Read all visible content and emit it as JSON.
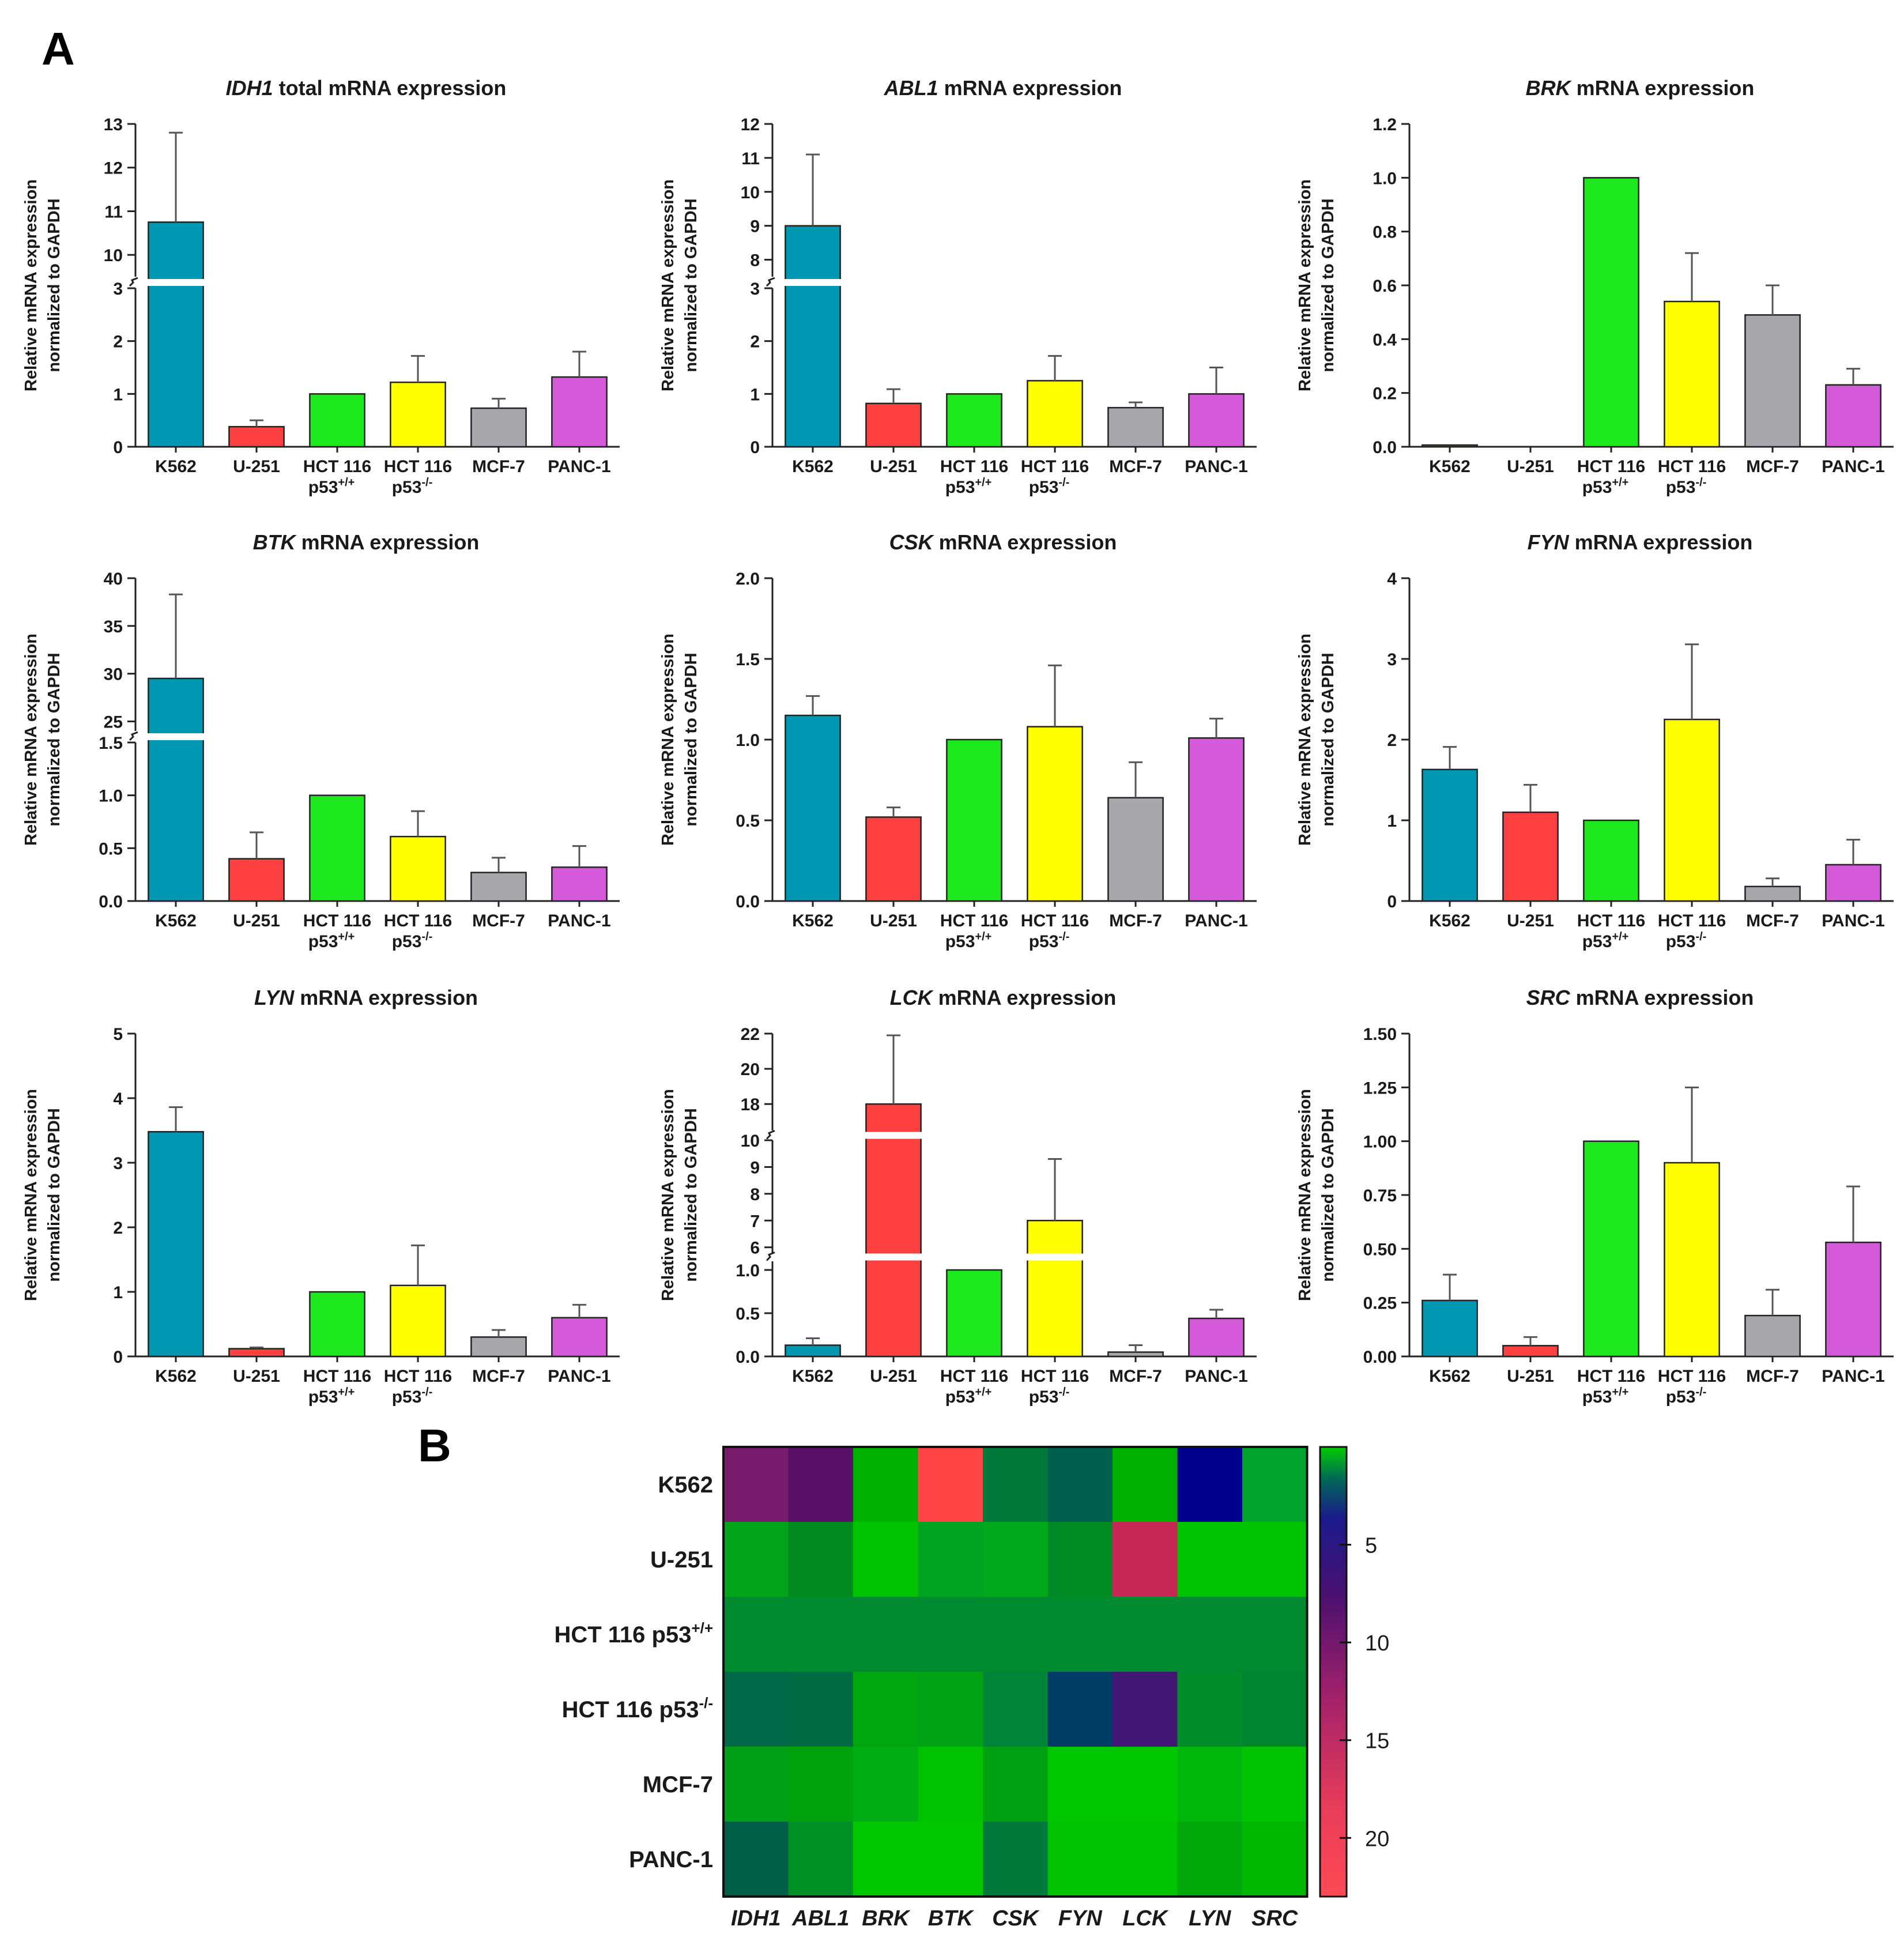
{
  "panel_labels": {
    "a": "A",
    "b": "B"
  },
  "ylabel_line1": "Relative mRNA expression",
  "ylabel_line2": "normalized to GAPDH",
  "category_colors": [
    "#0097b2",
    "#ff4040",
    "#1ee81e",
    "#ffff00",
    "#a6a6ab",
    "#d55ad9"
  ],
  "chart_data": [
    {
      "type": "bar",
      "title_gene": "IDH1",
      "title_rest": " total mRNA expression",
      "categories": [
        "K562",
        "U-251",
        "HCT 116|p53|+/+",
        "HCT 116|p53|-/-",
        "MCF-7",
        "PANC-1"
      ],
      "values": [
        10.75,
        0.38,
        1.0,
        1.22,
        0.73,
        1.32
      ],
      "errors": [
        2.05,
        0.12,
        0,
        0.5,
        0.18,
        0.48
      ],
      "axis_break": true,
      "lower": {
        "range": [
          0,
          3
        ],
        "ticks": [
          "0",
          "1",
          "2",
          "3"
        ]
      },
      "upper": {
        "range": [
          9.5,
          13
        ],
        "ticks": [
          "10",
          "11",
          "12",
          "13"
        ]
      }
    },
    {
      "type": "bar",
      "title_gene": "ABL1",
      "title_rest": " mRNA expression",
      "categories": [
        "K562",
        "U-251",
        "HCT 116|p53|+/+",
        "HCT 116|p53|-/-",
        "MCF-7",
        "PANC-1"
      ],
      "values": [
        9.0,
        0.82,
        1.0,
        1.25,
        0.74,
        1.0
      ],
      "errors": [
        2.1,
        0.27,
        0,
        0.47,
        0.1,
        0.5
      ],
      "axis_break": true,
      "lower": {
        "range": [
          0,
          3
        ],
        "ticks": [
          "0",
          "1",
          "2",
          "3"
        ]
      },
      "upper": {
        "range": [
          7.5,
          12
        ],
        "ticks": [
          "8",
          "9",
          "10",
          "11",
          "12"
        ]
      }
    },
    {
      "type": "bar",
      "title_gene": "BRK",
      "title_rest": " mRNA expression",
      "categories": [
        "K562",
        "U-251",
        "HCT 116|p53|+/+",
        "HCT 116|p53|-/-",
        "MCF-7",
        "PANC-1"
      ],
      "values": [
        0.003,
        0,
        1.0,
        0.54,
        0.49,
        0.23
      ],
      "errors": [
        0,
        0,
        0,
        0.18,
        0.11,
        0.06
      ],
      "axis_break": false,
      "lower": {
        "range": [
          0,
          1.2
        ],
        "ticks": [
          "0.0",
          "0.2",
          "0.4",
          "0.6",
          "0.8",
          "1.0",
          "1.2"
        ]
      }
    },
    {
      "type": "bar",
      "title_gene": "BTK",
      "title_rest": " mRNA expression",
      "categories": [
        "K562",
        "U-251",
        "HCT 116|p53|+/+",
        "HCT 116|p53|-/-",
        "MCF-7",
        "PANC-1"
      ],
      "values": [
        29.5,
        0.4,
        1.0,
        0.61,
        0.27,
        0.32
      ],
      "errors": [
        8.8,
        0.25,
        0,
        0.24,
        0.14,
        0.2
      ],
      "axis_break": true,
      "lower": {
        "range": [
          0,
          1.5
        ],
        "ticks": [
          "0.0",
          "0.5",
          "1.0",
          "1.5"
        ]
      },
      "upper": {
        "range": [
          24,
          40
        ],
        "ticks": [
          "25",
          "30",
          "35",
          "40"
        ]
      }
    },
    {
      "type": "bar",
      "title_gene": "CSK",
      "title_rest": " mRNA expression",
      "categories": [
        "K562",
        "U-251",
        "HCT 116|p53|+/+",
        "HCT 116|p53|-/-",
        "MCF-7",
        "PANC-1"
      ],
      "values": [
        1.15,
        0.52,
        1.0,
        1.08,
        0.64,
        1.01
      ],
      "errors": [
        0.12,
        0.06,
        0,
        0.38,
        0.22,
        0.12
      ],
      "axis_break": false,
      "lower": {
        "range": [
          0,
          2.0
        ],
        "ticks": [
          "0.0",
          "0.5",
          "1.0",
          "1.5",
          "2.0"
        ]
      }
    },
    {
      "type": "bar",
      "title_gene": "FYN",
      "title_rest": " mRNA expression",
      "categories": [
        "K562",
        "U-251",
        "HCT 116|p53|+/+",
        "HCT 116|p53|-/-",
        "MCF-7",
        "PANC-1"
      ],
      "values": [
        1.63,
        1.1,
        1.0,
        2.25,
        0.18,
        0.45
      ],
      "errors": [
        0.28,
        0.34,
        0,
        0.93,
        0.1,
        0.31
      ],
      "axis_break": false,
      "lower": {
        "range": [
          0,
          4
        ],
        "ticks": [
          "0",
          "1",
          "2",
          "3",
          "4"
        ]
      }
    },
    {
      "type": "bar",
      "title_gene": "LYN",
      "title_rest": " mRNA expression",
      "categories": [
        "K562",
        "U-251",
        "HCT 116|p53|+/+",
        "HCT 116|p53|-/-",
        "MCF-7",
        "PANC-1"
      ],
      "values": [
        3.48,
        0.12,
        1.0,
        1.1,
        0.3,
        0.6
      ],
      "errors": [
        0.38,
        0.02,
        0,
        0.62,
        0.11,
        0.2
      ],
      "axis_break": false,
      "lower": {
        "range": [
          0,
          5
        ],
        "ticks": [
          "0",
          "1",
          "2",
          "3",
          "4",
          "5"
        ]
      }
    },
    {
      "type": "bar",
      "title_gene": "LCK",
      "title_rest": " mRNA expression",
      "categories": [
        "K562",
        "U-251",
        "HCT 116|p53|+/+",
        "HCT 116|p53|-/-",
        "MCF-7",
        "PANC-1"
      ],
      "values": [
        0.13,
        18.0,
        1.0,
        7.0,
        0.05,
        0.44
      ],
      "errors": [
        0.08,
        3.9,
        0,
        2.3,
        0.08,
        0.1
      ],
      "axis_break": true,
      "three_segment": true,
      "lower": {
        "range": [
          0,
          1.1
        ],
        "ticks": [
          "0.0",
          "0.5",
          "1.0"
        ]
      },
      "middle": {
        "range": [
          5.8,
          10
        ],
        "ticks": [
          "6",
          "7",
          "8",
          "9",
          "10"
        ]
      },
      "upper": {
        "range": [
          16.5,
          22
        ],
        "ticks": [
          "18",
          "20",
          "22"
        ]
      }
    },
    {
      "type": "bar",
      "title_gene": "SRC",
      "title_rest": " mRNA expression",
      "categories": [
        "K562",
        "U-251",
        "HCT 116|p53|+/+",
        "HCT 116|p53|-/-",
        "MCF-7",
        "PANC-1"
      ],
      "values": [
        0.26,
        0.05,
        1.0,
        0.9,
        0.19,
        0.53
      ],
      "errors": [
        0.12,
        0.04,
        0,
        0.35,
        0.12,
        0.26
      ],
      "axis_break": false,
      "lower": {
        "range": [
          0,
          1.5
        ],
        "ticks": [
          "0.00",
          "0.25",
          "0.50",
          "0.75",
          "1.00",
          "1.25",
          "1.50"
        ]
      }
    },
    {
      "type": "heatmap",
      "rows": [
        "K562",
        "U-251",
        "HCT 116 p53|+/+",
        "HCT 116 p53|-/-",
        "MCF-7",
        "PANC-1"
      ],
      "columns": [
        "IDH1",
        "ABL1",
        "BRK",
        "BTK",
        "CSK",
        "FYN",
        "LCK",
        "LYN",
        "SRC"
      ],
      "colorbar": {
        "range": [
          0,
          23
        ],
        "ticks": [
          "5",
          "10",
          "15",
          "20"
        ],
        "tick_values": [
          5,
          10,
          15,
          20
        ]
      },
      "cell_colors": [
        [
          "#781c6d",
          "#591068",
          "#00b000",
          "#ff4545",
          "#007a3a",
          "#005f4d",
          "#00b000",
          "#00008c",
          "#00a32c"
        ],
        [
          "#00a319",
          "#008a20",
          "#00c200",
          "#00a31f",
          "#00a81c",
          "#008a26",
          "#c72855",
          "#00c200",
          "#00c200"
        ],
        [
          "#008a30",
          "#008a30",
          "#008a30",
          "#008a30",
          "#008a30",
          "#008a30",
          "#008a30",
          "#008a30",
          "#008a30"
        ],
        [
          "#006a48",
          "#006a42",
          "#00a60d",
          "#00a314",
          "#00843a",
          "#003c64",
          "#421773",
          "#008c28",
          "#008430"
        ],
        [
          "#00a019",
          "#00a30c",
          "#00ad15",
          "#00c200",
          "#00a214",
          "#00c700",
          "#00c700",
          "#00b80b",
          "#00c200"
        ],
        [
          "#005f46",
          "#008f24",
          "#00c700",
          "#00c700",
          "#007a3a",
          "#00c200",
          "#00c200",
          "#00a80a",
          "#00b800"
        ]
      ]
    }
  ]
}
